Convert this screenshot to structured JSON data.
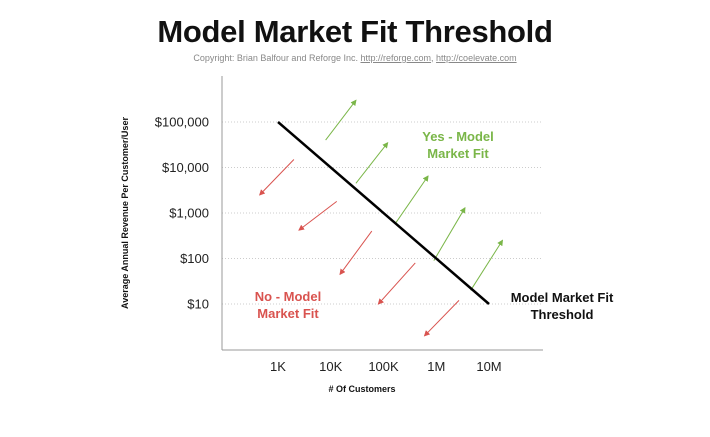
{
  "header": {
    "title": "Model Market Fit Threshold",
    "copyright_prefix": "Copyright:  Brian Balfour and Reforge Inc. ",
    "link1": "http://reforge.com",
    "separator": ", ",
    "link2": "http://coelevate.com"
  },
  "colors": {
    "green": "#7ab648",
    "red": "#d9534f",
    "line": "#000000",
    "grid": "#cccccc"
  },
  "chart_data": {
    "type": "line",
    "xlabel": "# Of Customers",
    "ylabel": "Average Annual Revenue Per Customer/User",
    "x_scale": "log",
    "y_scale": "log",
    "x_ticks": [
      {
        "value": 1000,
        "label": "1K"
      },
      {
        "value": 10000,
        "label": "10K"
      },
      {
        "value": 100000,
        "label": "100K"
      },
      {
        "value": 1000000,
        "label": "1M"
      },
      {
        "value": 10000000,
        "label": "10M"
      }
    ],
    "y_ticks": [
      {
        "value": 10,
        "label": "$10"
      },
      {
        "value": 100,
        "label": "$100"
      },
      {
        "value": 1000,
        "label": "$1,000"
      },
      {
        "value": 10000,
        "label": "$10,000"
      },
      {
        "value": 100000,
        "label": "$100,000"
      }
    ],
    "grid": "horizontal dotted",
    "threshold_line": {
      "points": [
        [
          1000,
          100000
        ],
        [
          10000000,
          10
        ]
      ]
    },
    "threshold_label": [
      "Model Market Fit",
      "Threshold"
    ],
    "above_label": [
      "Yes - Model",
      "Market Fit"
    ],
    "below_label": [
      "No - Model",
      "Market Fit"
    ],
    "up_arrows": [
      {
        "from": [
          8000,
          40000
        ],
        "to": [
          30000,
          300000
        ]
      },
      {
        "from": [
          30000,
          4500
        ],
        "to": [
          120000,
          35000
        ]
      },
      {
        "from": [
          170000,
          600
        ],
        "to": [
          700000,
          6500
        ]
      },
      {
        "from": [
          900000,
          90
        ],
        "to": [
          3500000,
          1300
        ]
      },
      {
        "from": [
          4500000,
          20
        ],
        "to": [
          18000000,
          250
        ]
      }
    ],
    "down_arrows": [
      {
        "from": [
          2000,
          15000
        ],
        "to": [
          450,
          2500
        ]
      },
      {
        "from": [
          13000,
          1800
        ],
        "to": [
          2500,
          420
        ]
      },
      {
        "from": [
          60000,
          400
        ],
        "to": [
          15000,
          45
        ]
      },
      {
        "from": [
          400000,
          80
        ],
        "to": [
          80000,
          10
        ]
      },
      {
        "from": [
          2700000,
          12
        ],
        "to": [
          600000,
          2
        ]
      }
    ]
  }
}
